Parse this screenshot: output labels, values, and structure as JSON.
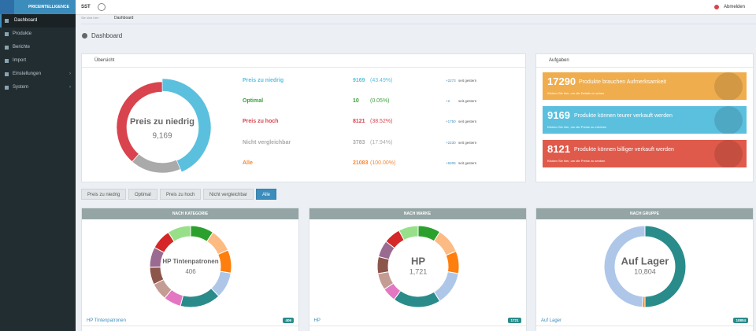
{
  "header": {
    "brand": "PRICEINTELLIGENCE",
    "project": "SST",
    "logout": "Abmelden"
  },
  "sidebar": {
    "items": [
      "Dashboard",
      "Produkte",
      "Berichte",
      "Import",
      "Einstellungen",
      "System"
    ]
  },
  "breadcrumb": {
    "label": "Sie sind hier:",
    "current": "Dashboard"
  },
  "page_title": "Dashboard",
  "overview": {
    "title": "Übersicht",
    "center_label": "Preis zu niedrig",
    "center_value": "9,169",
    "rows": [
      {
        "label": "Preis zu niedrig",
        "value": 9169,
        "percent": "(43.49%)",
        "change": "+2273",
        "change_suffix": "seit gestern",
        "color": "#5bc0de"
      },
      {
        "label": "Optimal",
        "value": 10,
        "percent": "(0.05%)",
        "change": "+2",
        "change_suffix": "seit gestern",
        "color": "#3c9e3c"
      },
      {
        "label": "Preis zu hoch",
        "value": 8121,
        "percent": "(38.52%)",
        "change": "+1750",
        "change_suffix": "seit gestern",
        "color": "#d9434e"
      },
      {
        "label": "Nicht vergleichbar",
        "value": 3783,
        "percent": "(17.94%)",
        "change": "+2230",
        "change_suffix": "seit gestern",
        "color": "#aaaaaa"
      },
      {
        "label": "Alle",
        "value": 21083,
        "percent": "(100.00%)",
        "change": "+6206",
        "change_suffix": "seit gestern",
        "color": "#f0883a"
      }
    ]
  },
  "tasks": {
    "title": "Aufgaben",
    "items": [
      {
        "number": 17290,
        "text": "Produkte brauchen Aufmerksamkeit",
        "sub": "Klicken Sie hier, um die Details zu sehen",
        "color": "#f0ad4e"
      },
      {
        "number": 9169,
        "text": "Produkte können teurer verkauft werden",
        "sub": "Klicken Sie hier, um die Preise zu erhöhen",
        "color": "#5bc0de"
      },
      {
        "number": 8121,
        "text": "Produkte können billiger verkauft werden",
        "sub": "Klicken Sie hier, um die Preise zu senken",
        "color": "#e05a4b"
      }
    ]
  },
  "filters": {
    "items": [
      "Preis zu niedrig",
      "Optimal",
      "Preis zu hoch",
      "Nicht vergleichbar",
      "Alle"
    ],
    "active": 4
  },
  "groups": [
    {
      "title": "NACH KATEGORIE",
      "center_label": "HP Tintenpatronen",
      "center_value": "406",
      "list_label": "HP Tintenpatronen",
      "list_badge": "406",
      "segments": [
        {
          "value": 8,
          "color": "#2ca02c"
        },
        {
          "value": 8,
          "color": "#fdbb84"
        },
        {
          "value": 8,
          "color": "#ff7f0e"
        },
        {
          "value": 9,
          "color": "#aec7e8"
        },
        {
          "value": 14,
          "color": "#2a8b8b"
        },
        {
          "value": 6,
          "color": "#e377c2"
        },
        {
          "value": 6,
          "color": "#c49c94"
        },
        {
          "value": 6,
          "color": "#8c564b"
        },
        {
          "value": 7,
          "color": "#9b6a90"
        },
        {
          "value": 7,
          "color": "#d62728"
        },
        {
          "value": 8,
          "color": "#98df8a"
        }
      ]
    },
    {
      "title": "NACH MARKE",
      "center_label": "HP",
      "center_value": "1,721",
      "list_label": "HP",
      "list_badge": "1721",
      "segments": [
        {
          "value": 8,
          "color": "#2ca02c"
        },
        {
          "value": 9,
          "color": "#fdbb84"
        },
        {
          "value": 8,
          "color": "#ff7f0e"
        },
        {
          "value": 12,
          "color": "#aec7e8"
        },
        {
          "value": 17,
          "color": "#2a8b8b"
        },
        {
          "value": 5,
          "color": "#e377c2"
        },
        {
          "value": 6,
          "color": "#c49c94"
        },
        {
          "value": 6,
          "color": "#8c564b"
        },
        {
          "value": 6,
          "color": "#9b6a90"
        },
        {
          "value": 6,
          "color": "#d62728"
        },
        {
          "value": 7,
          "color": "#98df8a"
        }
      ]
    },
    {
      "title": "NACH GRUPPE",
      "center_label": "Auf Lager",
      "center_value": "10,804",
      "list_label": "Auf Lager",
      "list_badge": "10804",
      "segments": [
        {
          "value": 50,
          "color": "#2a8b8b"
        },
        {
          "value": 1,
          "color": "#ff7f0e"
        },
        {
          "value": 49,
          "color": "#aec7e8"
        }
      ]
    }
  ]
}
